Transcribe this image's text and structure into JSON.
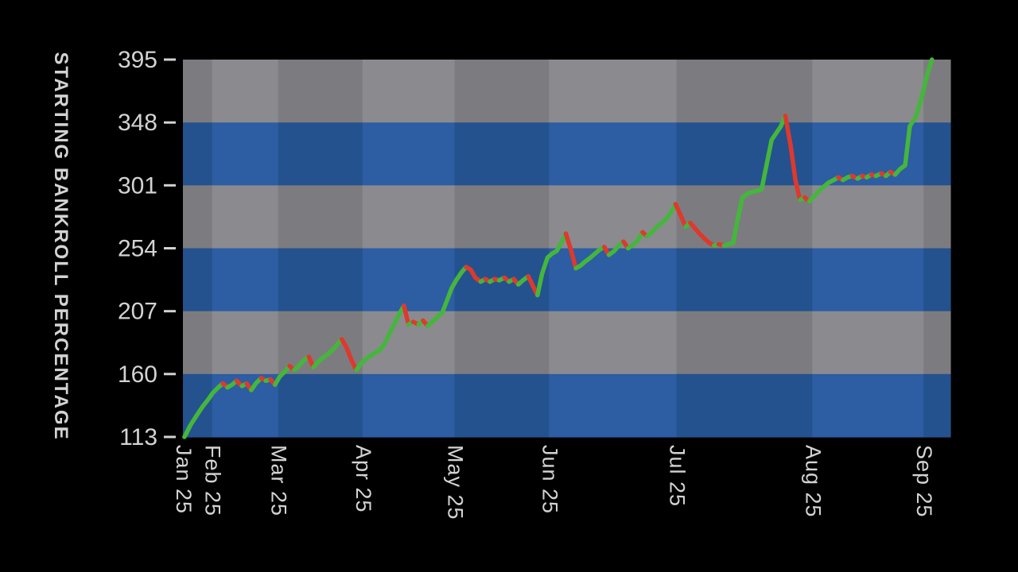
{
  "chart_data": {
    "type": "line",
    "title": "",
    "xlabel": "",
    "ylabel": "STARTING BANKROLL PERCENTAGE",
    "ylim": [
      113,
      395
    ],
    "y_ticks": [
      113,
      160,
      207,
      254,
      301,
      348,
      395
    ],
    "x_ticks": [
      {
        "label": "Jan 25",
        "pos": 0.0
      },
      {
        "label": "Feb 25",
        "pos": 0.038
      },
      {
        "label": "Mar 25",
        "pos": 0.124
      },
      {
        "label": "Apr 25",
        "pos": 0.234
      },
      {
        "label": "May 25",
        "pos": 0.354
      },
      {
        "label": "Jun 25",
        "pos": 0.477
      },
      {
        "label": "Jul 25",
        "pos": 0.643
      },
      {
        "label": "Aug 25",
        "pos": 0.82
      },
      {
        "label": "Sep 25",
        "pos": 0.965
      }
    ],
    "series": [
      {
        "name": "starting-bankroll-percentage",
        "colors": {
          "rising": "#45b63c",
          "falling": "#de392c"
        },
        "points": [
          [
            0.002,
            113
          ],
          [
            0.01,
            122
          ],
          [
            0.019,
            130
          ],
          [
            0.026,
            136
          ],
          [
            0.033,
            141
          ],
          [
            0.039,
            146
          ],
          [
            0.046,
            150
          ],
          [
            0.052,
            153
          ],
          [
            0.058,
            150
          ],
          [
            0.064,
            152
          ],
          [
            0.07,
            155
          ],
          [
            0.077,
            151
          ],
          [
            0.083,
            153
          ],
          [
            0.089,
            148
          ],
          [
            0.095,
            153
          ],
          [
            0.102,
            157
          ],
          [
            0.108,
            155
          ],
          [
            0.114,
            156
          ],
          [
            0.12,
            152
          ],
          [
            0.126,
            158
          ],
          [
            0.133,
            162
          ],
          [
            0.139,
            166
          ],
          [
            0.145,
            163
          ],
          [
            0.151,
            166
          ],
          [
            0.157,
            170
          ],
          [
            0.164,
            173
          ],
          [
            0.17,
            165
          ],
          [
            0.176,
            169
          ],
          [
            0.182,
            172
          ],
          [
            0.189,
            175
          ],
          [
            0.195,
            178
          ],
          [
            0.201,
            182
          ],
          [
            0.207,
            186
          ],
          [
            0.213,
            180
          ],
          [
            0.22,
            170
          ],
          [
            0.226,
            163
          ],
          [
            0.232,
            168
          ],
          [
            0.238,
            171
          ],
          [
            0.245,
            174
          ],
          [
            0.251,
            176
          ],
          [
            0.257,
            178
          ],
          [
            0.263,
            183
          ],
          [
            0.269,
            190
          ],
          [
            0.276,
            198
          ],
          [
            0.282,
            205
          ],
          [
            0.288,
            211
          ],
          [
            0.294,
            197
          ],
          [
            0.3,
            199
          ],
          [
            0.307,
            197
          ],
          [
            0.313,
            200
          ],
          [
            0.319,
            196
          ],
          [
            0.325,
            199
          ],
          [
            0.332,
            203
          ],
          [
            0.338,
            206
          ],
          [
            0.344,
            215
          ],
          [
            0.35,
            224
          ],
          [
            0.356,
            230
          ],
          [
            0.363,
            236
          ],
          [
            0.369,
            240
          ],
          [
            0.375,
            238
          ],
          [
            0.381,
            232
          ],
          [
            0.388,
            229
          ],
          [
            0.394,
            231
          ],
          [
            0.4,
            229
          ],
          [
            0.406,
            231
          ],
          [
            0.412,
            230
          ],
          [
            0.419,
            232
          ],
          [
            0.425,
            229
          ],
          [
            0.431,
            231
          ],
          [
            0.437,
            227
          ],
          [
            0.443,
            230
          ],
          [
            0.45,
            233
          ],
          [
            0.456,
            226
          ],
          [
            0.462,
            219
          ],
          [
            0.468,
            235
          ],
          [
            0.475,
            247
          ],
          [
            0.481,
            250
          ],
          [
            0.487,
            252
          ],
          [
            0.493,
            258
          ],
          [
            0.499,
            265
          ],
          [
            0.506,
            252
          ],
          [
            0.512,
            239
          ],
          [
            0.518,
            241
          ],
          [
            0.524,
            244
          ],
          [
            0.531,
            247
          ],
          [
            0.537,
            250
          ],
          [
            0.543,
            253
          ],
          [
            0.549,
            255
          ],
          [
            0.555,
            249
          ],
          [
            0.562,
            252
          ],
          [
            0.568,
            256
          ],
          [
            0.574,
            259
          ],
          [
            0.58,
            254
          ],
          [
            0.587,
            257
          ],
          [
            0.593,
            260
          ],
          [
            0.599,
            266
          ],
          [
            0.605,
            263
          ],
          [
            0.611,
            266
          ],
          [
            0.618,
            270
          ],
          [
            0.624,
            273
          ],
          [
            0.63,
            276
          ],
          [
            0.636,
            281
          ],
          [
            0.642,
            287
          ],
          [
            0.649,
            278
          ],
          [
            0.655,
            270
          ],
          [
            0.661,
            273
          ],
          [
            0.667,
            269
          ],
          [
            0.673,
            265
          ],
          [
            0.68,
            261
          ],
          [
            0.686,
            258
          ],
          [
            0.692,
            256
          ],
          [
            0.698,
            257
          ],
          [
            0.705,
            256
          ],
          [
            0.711,
            257
          ],
          [
            0.717,
            258
          ],
          [
            0.723,
            276
          ],
          [
            0.729,
            292
          ],
          [
            0.736,
            295
          ],
          [
            0.742,
            296
          ],
          [
            0.748,
            297
          ],
          [
            0.754,
            298
          ],
          [
            0.76,
            315
          ],
          [
            0.767,
            335
          ],
          [
            0.773,
            340
          ],
          [
            0.779,
            345
          ],
          [
            0.785,
            353
          ],
          [
            0.792,
            330
          ],
          [
            0.798,
            305
          ],
          [
            0.804,
            290
          ],
          [
            0.81,
            292
          ],
          [
            0.816,
            289
          ],
          [
            0.823,
            293
          ],
          [
            0.829,
            297
          ],
          [
            0.835,
            300
          ],
          [
            0.841,
            303
          ],
          [
            0.848,
            305
          ],
          [
            0.854,
            307
          ],
          [
            0.86,
            305
          ],
          [
            0.866,
            307
          ],
          [
            0.872,
            308
          ],
          [
            0.879,
            306
          ],
          [
            0.885,
            308
          ],
          [
            0.891,
            307
          ],
          [
            0.897,
            309
          ],
          [
            0.903,
            308
          ],
          [
            0.91,
            310
          ],
          [
            0.916,
            308
          ],
          [
            0.922,
            311
          ],
          [
            0.928,
            309
          ],
          [
            0.934,
            313
          ],
          [
            0.941,
            316
          ],
          [
            0.947,
            345
          ],
          [
            0.951,
            349
          ],
          [
            0.955,
            352
          ],
          [
            0.959,
            360
          ],
          [
            0.964,
            370
          ],
          [
            0.968,
            380
          ],
          [
            0.972,
            388
          ],
          [
            0.976,
            395
          ]
        ]
      }
    ],
    "style": {
      "page_background": "#000000",
      "rows_top_to_bottom": [
        "gray",
        "blue",
        "gray",
        "blue",
        "gray",
        "blue"
      ],
      "column_boundaries": [
        0,
        0.038,
        0.124,
        0.234,
        0.354,
        0.477,
        0.643,
        0.82,
        0.965,
        1.0
      ],
      "gray_dark": "#7c7c80",
      "gray_light": "#8b8b8f",
      "blue_dark": "#24528e",
      "blue_light": "#2d5da3",
      "text_color": "#d3d3d5",
      "tick_color": "#d3d3d5"
    },
    "legend": {
      "visible": false
    },
    "grid": "checkered-bands"
  }
}
